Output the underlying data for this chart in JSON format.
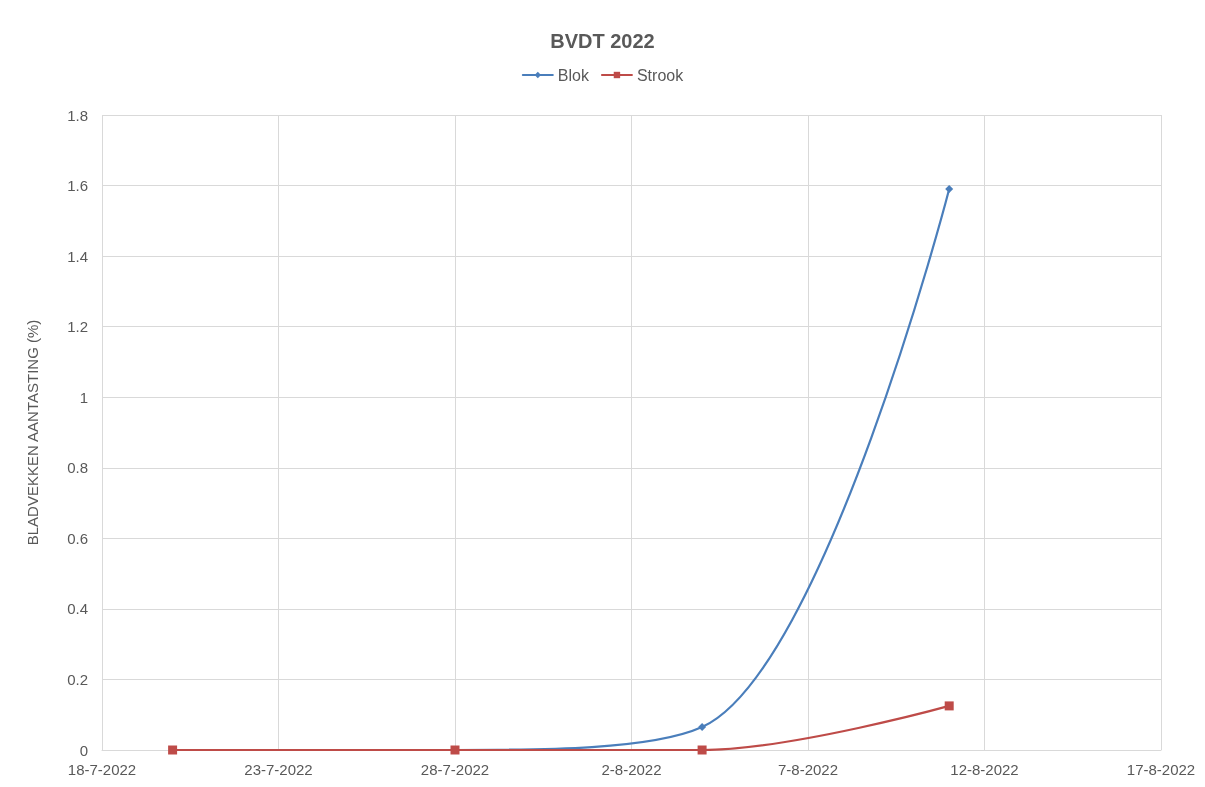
{
  "chart_data": {
    "type": "line",
    "title": "BVDT 2022",
    "ylabel": "BLADVEKKEN AANTASTING (%)",
    "x": [
      "2022-07-20",
      "2022-07-28",
      "2022-08-04",
      "2022-08-11"
    ],
    "series": [
      {
        "name": "Blok",
        "color": "#4a7ebb",
        "marker": "diamond",
        "values": [
          0,
          0,
          0.065,
          1.59
        ]
      },
      {
        "name": "Strook",
        "color": "#be4b48",
        "marker": "square",
        "values": [
          0,
          0,
          0,
          0.125
        ]
      }
    ],
    "xlim": [
      "2022-07-18",
      "2022-08-17"
    ],
    "xticks": [
      {
        "value": "2022-07-18",
        "label": "18-7-2022"
      },
      {
        "value": "2022-07-23",
        "label": "23-7-2022"
      },
      {
        "value": "2022-07-28",
        "label": "28-7-2022"
      },
      {
        "value": "2022-08-02",
        "label": "2-8-2022"
      },
      {
        "value": "2022-08-07",
        "label": "7-8-2022"
      },
      {
        "value": "2022-08-12",
        "label": "12-8-2022"
      },
      {
        "value": "2022-08-17",
        "label": "17-8-2022"
      }
    ],
    "ylim": [
      0,
      1.8
    ],
    "yticks": [
      0,
      0.2,
      0.4,
      0.6,
      0.8,
      1,
      1.2,
      1.4,
      1.6,
      1.8
    ],
    "grid": true,
    "legend": "top",
    "line_style": "solid"
  }
}
